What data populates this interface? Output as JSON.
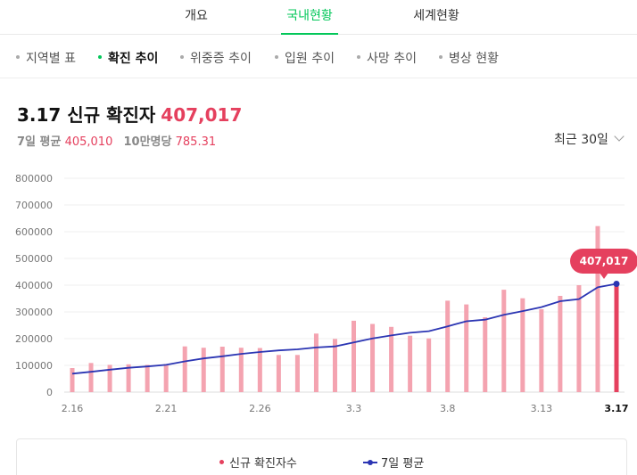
{
  "top_tabs": [
    {
      "label": "개요",
      "active": false
    },
    {
      "label": "국내현황",
      "active": true
    },
    {
      "label": "세계현황",
      "active": false
    }
  ],
  "sub_tabs": [
    {
      "label": "지역별 표",
      "active": false
    },
    {
      "label": "확진 추이",
      "active": true
    },
    {
      "label": "위중증 추이",
      "active": false
    },
    {
      "label": "입원 추이",
      "active": false
    },
    {
      "label": "사망 추이",
      "active": false
    },
    {
      "label": "병상 현황",
      "active": false
    }
  ],
  "headline": {
    "title": "3.17 신규 확진자",
    "value": "407,017"
  },
  "stats": {
    "avg_label": "7일 평균",
    "avg_value": "405,010",
    "per100k_label": "10만명당",
    "per100k_value": "785.31"
  },
  "period_select": {
    "value": "최근 30일",
    "icon": "chevron-down-icon"
  },
  "colors": {
    "accent": "#03c75a",
    "bar": "#f4a3b0",
    "bar_highlight": "#e5405e",
    "line": "#2b35b3"
  },
  "chart_data": {
    "type": "bar",
    "x": [
      "2.16",
      "2.17",
      "2.18",
      "2.19",
      "2.20",
      "2.21",
      "2.22",
      "2.23",
      "2.24",
      "2.25",
      "2.26",
      "2.27",
      "2.28",
      "3.1",
      "3.2",
      "3.3",
      "3.4",
      "3.5",
      "3.6",
      "3.7",
      "3.8",
      "3.9",
      "3.10",
      "3.11",
      "3.12",
      "3.13",
      "3.14",
      "3.15",
      "3.16",
      "3.17"
    ],
    "x_tick_labels": [
      "2.16",
      "2.21",
      "2.26",
      "3.3",
      "3.8",
      "3.13",
      "3.17"
    ],
    "ylim": [
      0,
      800000
    ],
    "y_ticks": [
      0,
      100000,
      200000,
      300000,
      400000,
      500000,
      600000,
      700000,
      800000
    ],
    "grid": true,
    "legend_placement": "bottom",
    "series": [
      {
        "name": "신규 확진자수",
        "type": "bar",
        "values": [
          90000,
          109000,
          102000,
          104000,
          102000,
          105000,
          171000,
          166000,
          170000,
          166000,
          165000,
          139000,
          139000,
          219000,
          199000,
          267000,
          255000,
          244000,
          211000,
          201000,
          342000,
          328000,
          280000,
          383000,
          351000,
          310000,
          360000,
          400000,
          621000,
          407017
        ]
      },
      {
        "name": "7일 평균",
        "type": "line",
        "values": [
          69000,
          76000,
          84000,
          91000,
          96000,
          102000,
          115000,
          126000,
          134000,
          143000,
          150000,
          156000,
          160000,
          167000,
          171000,
          186000,
          201000,
          212000,
          222000,
          228000,
          246000,
          265000,
          271000,
          289000,
          303000,
          318000,
          340000,
          348000,
          392000,
          405010
        ]
      }
    ],
    "highlight_label": "407,017"
  },
  "legend": {
    "bar_label": "신규 확진자수",
    "line_label": "7일 평균"
  }
}
